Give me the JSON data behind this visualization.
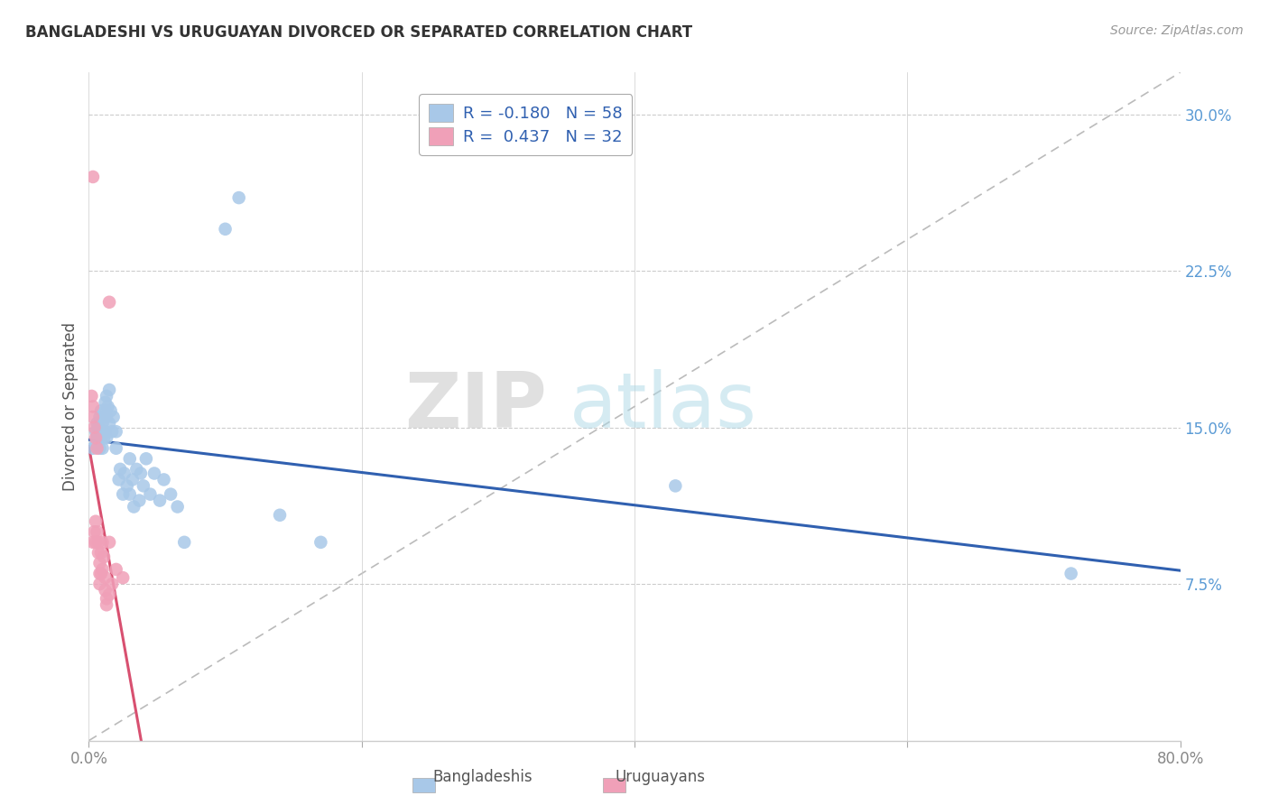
{
  "title": "BANGLADESHI VS URUGUAYAN DIVORCED OR SEPARATED CORRELATION CHART",
  "source": "Source: ZipAtlas.com",
  "ylabel_label": "Divorced or Separated",
  "xlim": [
    0.0,
    0.8
  ],
  "ylim": [
    0.0,
    0.32
  ],
  "legend_blue_R": "R = -0.180",
  "legend_blue_N": "N = 58",
  "legend_pink_R": "R =  0.437",
  "legend_pink_N": "N = 32",
  "blue_color": "#A8C8E8",
  "pink_color": "#F0A0B8",
  "trendline_blue_color": "#3060B0",
  "trendline_pink_color": "#D85070",
  "trendline_gray_color": "#BBBBBB",
  "ytick_color": "#5B9BD5",
  "xtick_color": "#888888",
  "watermark_zip": "ZIP",
  "watermark_atlas": "atlas",
  "bangladeshi_points": [
    [
      0.003,
      0.14
    ],
    [
      0.005,
      0.148
    ],
    [
      0.005,
      0.142
    ],
    [
      0.006,
      0.152
    ],
    [
      0.006,
      0.145
    ],
    [
      0.007,
      0.15
    ],
    [
      0.007,
      0.145
    ],
    [
      0.008,
      0.155
    ],
    [
      0.008,
      0.148
    ],
    [
      0.008,
      0.14
    ],
    [
      0.009,
      0.158
    ],
    [
      0.009,
      0.145
    ],
    [
      0.01,
      0.152
    ],
    [
      0.01,
      0.148
    ],
    [
      0.01,
      0.14
    ],
    [
      0.011,
      0.155
    ],
    [
      0.011,
      0.145
    ],
    [
      0.012,
      0.162
    ],
    [
      0.012,
      0.158
    ],
    [
      0.012,
      0.148
    ],
    [
      0.013,
      0.165
    ],
    [
      0.013,
      0.155
    ],
    [
      0.013,
      0.145
    ],
    [
      0.014,
      0.16
    ],
    [
      0.015,
      0.168
    ],
    [
      0.015,
      0.152
    ],
    [
      0.016,
      0.158
    ],
    [
      0.017,
      0.148
    ],
    [
      0.018,
      0.155
    ],
    [
      0.02,
      0.148
    ],
    [
      0.02,
      0.14
    ],
    [
      0.022,
      0.125
    ],
    [
      0.023,
      0.13
    ],
    [
      0.025,
      0.118
    ],
    [
      0.026,
      0.128
    ],
    [
      0.028,
      0.122
    ],
    [
      0.03,
      0.135
    ],
    [
      0.03,
      0.118
    ],
    [
      0.032,
      0.125
    ],
    [
      0.033,
      0.112
    ],
    [
      0.035,
      0.13
    ],
    [
      0.037,
      0.115
    ],
    [
      0.038,
      0.128
    ],
    [
      0.04,
      0.122
    ],
    [
      0.042,
      0.135
    ],
    [
      0.045,
      0.118
    ],
    [
      0.048,
      0.128
    ],
    [
      0.052,
      0.115
    ],
    [
      0.055,
      0.125
    ],
    [
      0.06,
      0.118
    ],
    [
      0.065,
      0.112
    ],
    [
      0.07,
      0.095
    ],
    [
      0.1,
      0.245
    ],
    [
      0.11,
      0.26
    ],
    [
      0.14,
      0.108
    ],
    [
      0.17,
      0.095
    ],
    [
      0.43,
      0.122
    ],
    [
      0.72,
      0.08
    ]
  ],
  "uruguayan_points": [
    [
      0.002,
      0.165
    ],
    [
      0.003,
      0.16
    ],
    [
      0.003,
      0.155
    ],
    [
      0.003,
      0.095
    ],
    [
      0.004,
      0.15
    ],
    [
      0.004,
      0.1
    ],
    [
      0.005,
      0.145
    ],
    [
      0.005,
      0.105
    ],
    [
      0.005,
      0.095
    ],
    [
      0.006,
      0.14
    ],
    [
      0.006,
      0.1
    ],
    [
      0.007,
      0.095
    ],
    [
      0.007,
      0.09
    ],
    [
      0.008,
      0.085
    ],
    [
      0.008,
      0.08
    ],
    [
      0.008,
      0.075
    ],
    [
      0.009,
      0.09
    ],
    [
      0.009,
      0.08
    ],
    [
      0.01,
      0.095
    ],
    [
      0.01,
      0.082
    ],
    [
      0.011,
      0.088
    ],
    [
      0.012,
      0.078
    ],
    [
      0.012,
      0.072
    ],
    [
      0.013,
      0.068
    ],
    [
      0.013,
      0.065
    ],
    [
      0.015,
      0.095
    ],
    [
      0.015,
      0.07
    ],
    [
      0.017,
      0.075
    ],
    [
      0.02,
      0.082
    ],
    [
      0.025,
      0.078
    ],
    [
      0.015,
      0.21
    ],
    [
      0.003,
      0.27
    ]
  ]
}
